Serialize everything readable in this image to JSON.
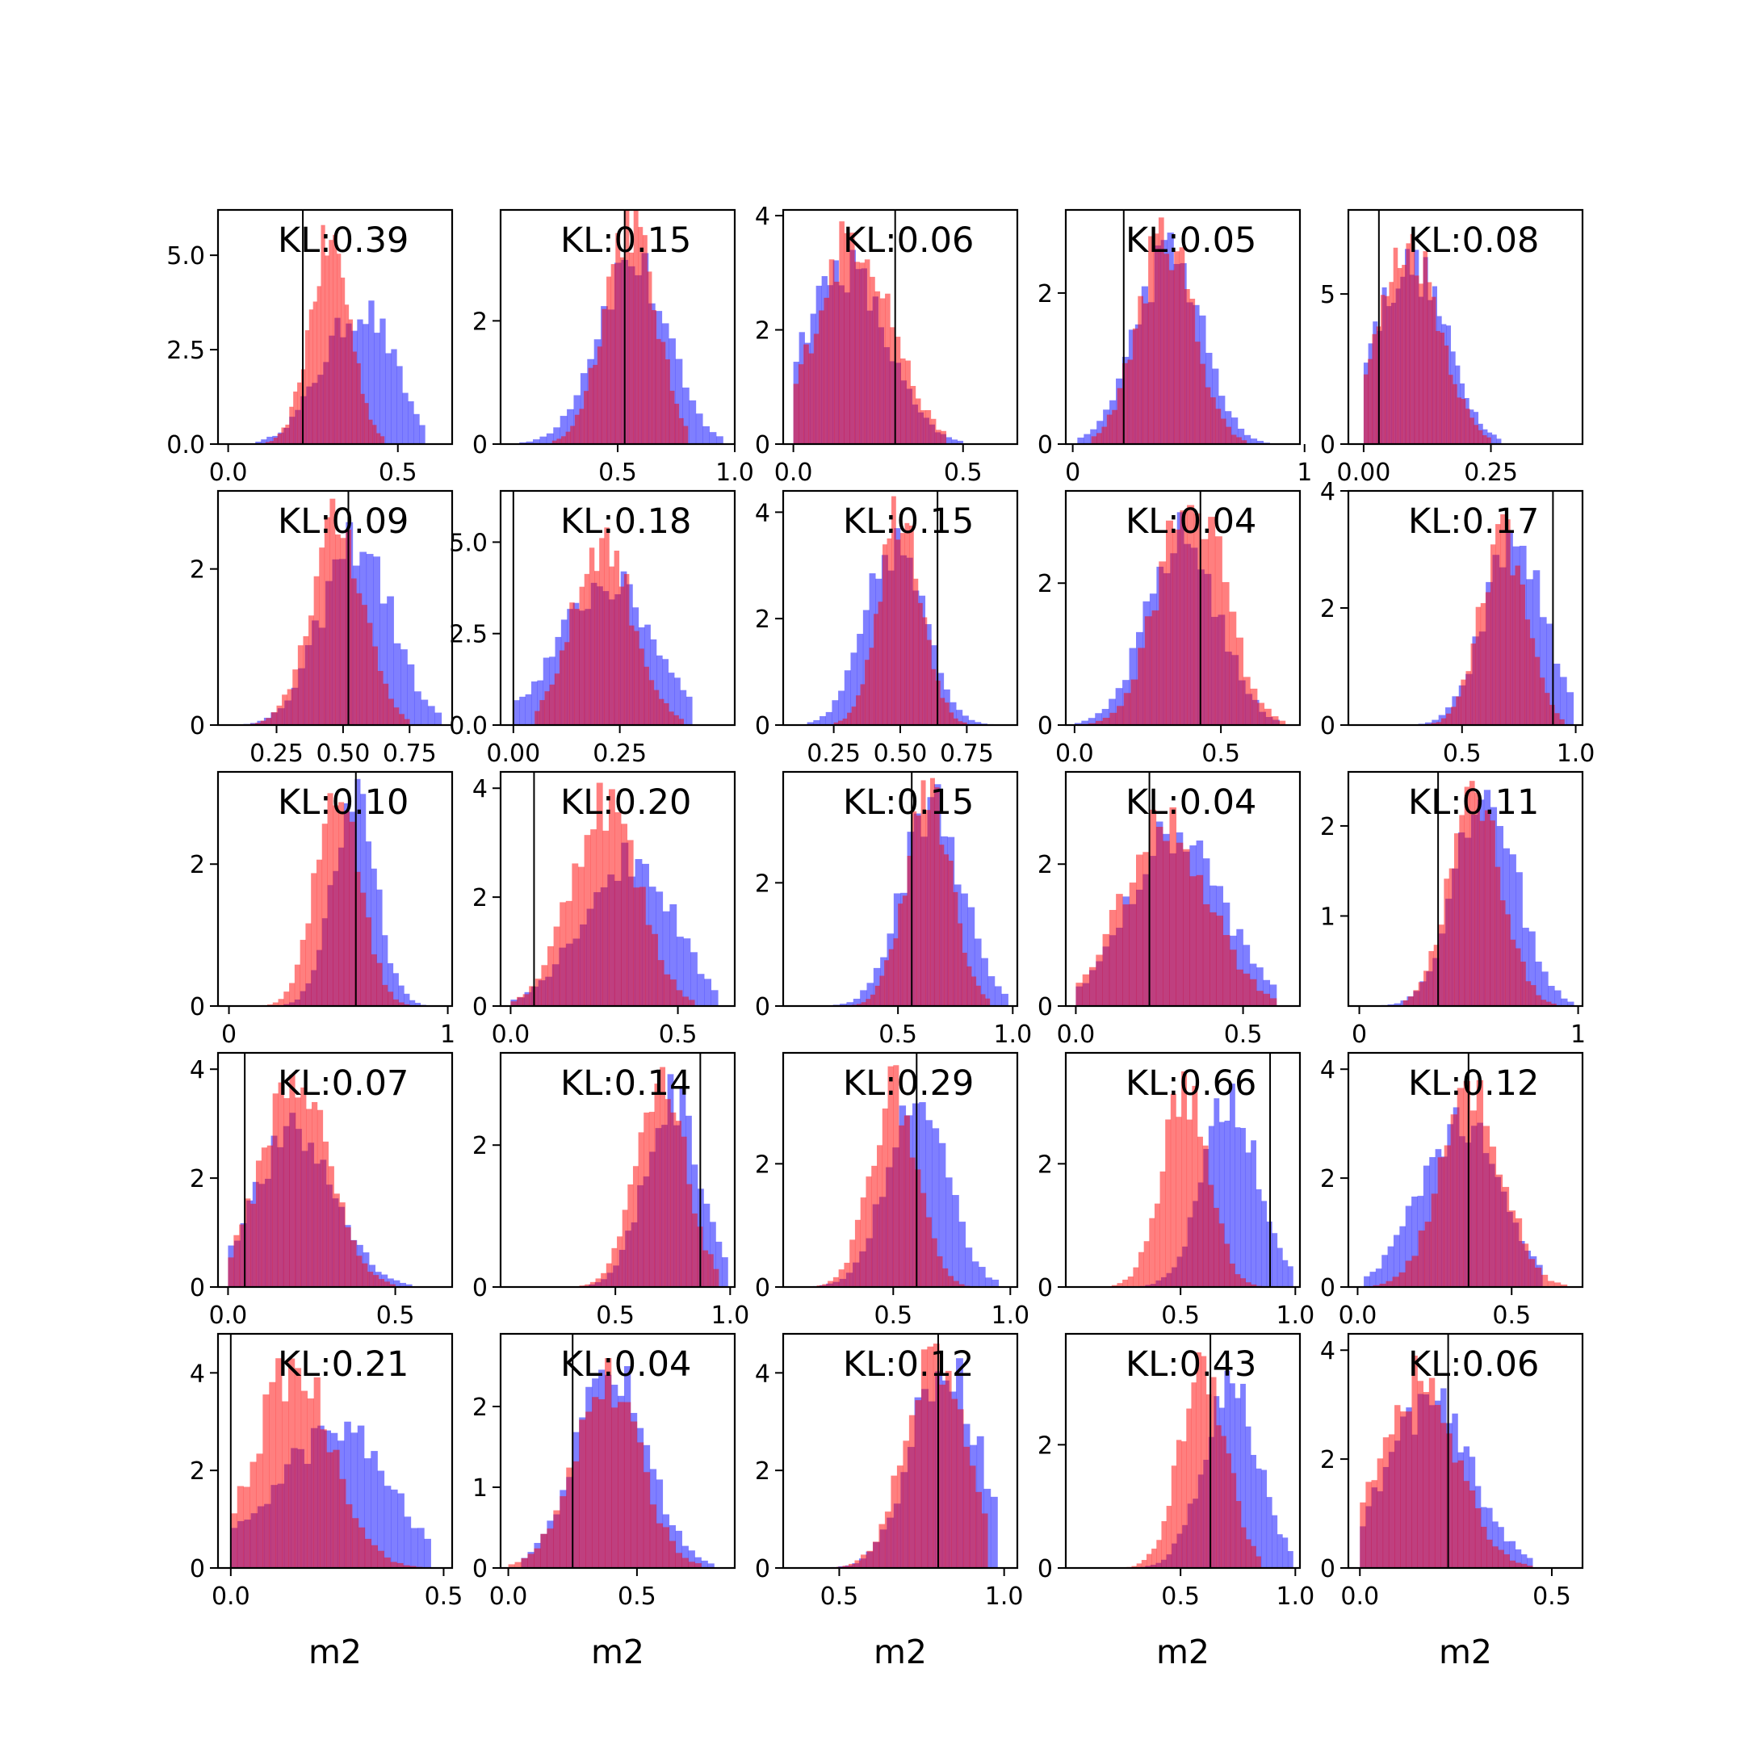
{
  "chart_data": {
    "type": "histogram-grid",
    "rows": 5,
    "cols": 5,
    "xlabel": "m2",
    "series": [
      {
        "color": "#0000ff",
        "alpha": 0.5
      },
      {
        "color": "#ff0000",
        "alpha": 0.5
      }
    ],
    "panels": [
      {
        "kl": "KL:0.39",
        "xlim": [
          -0.03,
          0.66
        ],
        "ylim": [
          0,
          6.2
        ],
        "xticks": [
          0.0,
          0.5
        ],
        "xtick_labels": [
          "0.0",
          "0.5"
        ],
        "yticks": [
          0,
          2.5,
          5.0
        ],
        "ytick_labels": [
          "0.0",
          "2.5",
          "5.0"
        ],
        "vline": 0.22,
        "blue": {
          "lo": 0.08,
          "hi": 0.58,
          "mean": 0.36,
          "sd": 0.1,
          "peak": 3.8,
          "skew": 0.5
        },
        "red": {
          "lo": 0.11,
          "hi": 0.46,
          "mean": 0.3,
          "sd": 0.06,
          "peak": 5.8,
          "skew": 0
        }
      },
      {
        "kl": "KL:0.15",
        "xlim": [
          0.0,
          1.0
        ],
        "ylim": [
          0,
          3.8
        ],
        "xticks": [
          0.5,
          1.0
        ],
        "xtick_labels": [
          "0.5",
          "1.0"
        ],
        "yticks": [
          0,
          2
        ],
        "ytick_labels": [
          "0",
          "2"
        ],
        "vline": 0.53,
        "blue": {
          "lo": 0.08,
          "hi": 0.95,
          "mean": 0.56,
          "sd": 0.15,
          "peak": 3.1,
          "skew": 0
        },
        "red": {
          "lo": 0.22,
          "hi": 0.8,
          "mean": 0.55,
          "sd": 0.11,
          "peak": 3.8,
          "skew": 0
        }
      },
      {
        "kl": "KL:0.06",
        "xlim": [
          -0.03,
          0.66
        ],
        "ylim": [
          0,
          4.1
        ],
        "xticks": [
          0.0,
          0.5
        ],
        "xtick_labels": [
          "0.0",
          "0.5"
        ],
        "yticks": [
          0,
          2,
          4
        ],
        "ytick_labels": [
          "0",
          "2",
          "4"
        ],
        "vline": 0.3,
        "blue": {
          "lo": 0.0,
          "hi": 0.5,
          "mean": 0.15,
          "sd": 0.12,
          "peak": 3.4,
          "skew": 0
        },
        "red": {
          "lo": 0.0,
          "hi": 0.45,
          "mean": 0.18,
          "sd": 0.11,
          "peak": 3.9,
          "skew": 0
        }
      },
      {
        "kl": "KL:0.05",
        "xlim": [
          -0.03,
          0.98
        ],
        "ylim": [
          0,
          3.1
        ],
        "xticks": [
          0,
          1
        ],
        "xtick_labels": [
          "0",
          "1"
        ],
        "yticks": [
          0,
          2
        ],
        "ytick_labels": [
          "0",
          "2"
        ],
        "vline": 0.22,
        "blue": {
          "lo": 0.02,
          "hi": 0.85,
          "mean": 0.4,
          "sd": 0.14,
          "peak": 2.8,
          "skew": 0.2
        },
        "red": {
          "lo": 0.08,
          "hi": 0.75,
          "mean": 0.4,
          "sd": 0.12,
          "peak": 3.0,
          "skew": 0
        }
      },
      {
        "kl": "KL:0.08",
        "xlim": [
          -0.03,
          0.43
        ],
        "ylim": [
          0,
          7.8
        ],
        "xticks": [
          0.0,
          0.25
        ],
        "xtick_labels": [
          "0.00",
          "0.25"
        ],
        "yticks": [
          0,
          5
        ],
        "ytick_labels": [
          "0",
          "5"
        ],
        "vline": 0.03,
        "blue": {
          "lo": 0.0,
          "hi": 0.27,
          "mean": 0.08,
          "sd": 0.07,
          "peak": 6.5,
          "skew": 0.3
        },
        "red": {
          "lo": 0.0,
          "hi": 0.25,
          "mean": 0.09,
          "sd": 0.06,
          "peak": 7.0,
          "skew": 0
        }
      },
      {
        "kl": "KL:0.09",
        "xlim": [
          0.03,
          0.91
        ],
        "ylim": [
          0,
          3.0
        ],
        "xticks": [
          0.25,
          0.5,
          0.75
        ],
        "xtick_labels": [
          "0.25",
          "0.50",
          "0.75"
        ],
        "yticks": [
          0,
          2
        ],
        "ytick_labels": [
          "0",
          "2"
        ],
        "vline": 0.52,
        "blue": {
          "lo": 0.1,
          "hi": 0.87,
          "mean": 0.55,
          "sd": 0.13,
          "peak": 2.6,
          "skew": 0
        },
        "red": {
          "lo": 0.15,
          "hi": 0.75,
          "mean": 0.48,
          "sd": 0.1,
          "peak": 2.9,
          "skew": 0
        }
      },
      {
        "kl": "KL:0.18",
        "xlim": [
          -0.03,
          0.52
        ],
        "ylim": [
          0,
          6.4
        ],
        "xticks": [
          0.0,
          0.25
        ],
        "xtick_labels": [
          "0.00",
          "0.25"
        ],
        "yticks": [
          0,
          2.5,
          5.0
        ],
        "ytick_labels": [
          "0.0",
          "2.5",
          "5.0"
        ],
        "vline": 0.0,
        "blue": {
          "lo": 0.0,
          "hi": 0.42,
          "mean": 0.22,
          "sd": 0.11,
          "peak": 4.2,
          "skew": 0
        },
        "red": {
          "lo": 0.05,
          "hi": 0.4,
          "mean": 0.21,
          "sd": 0.07,
          "peak": 5.4,
          "skew": 0
        }
      },
      {
        "kl": "KL:0.15",
        "xlim": [
          0.06,
          0.94
        ],
        "ylim": [
          0,
          4.4
        ],
        "xticks": [
          0.25,
          0.5,
          0.75
        ],
        "xtick_labels": [
          "0.25",
          "0.50",
          "0.75"
        ],
        "yticks": [
          0,
          2,
          4
        ],
        "ytick_labels": [
          "0",
          "2",
          "4"
        ],
        "vline": 0.64,
        "blue": {
          "lo": 0.15,
          "hi": 0.85,
          "mean": 0.48,
          "sd": 0.11,
          "peak": 3.7,
          "skew": 0
        },
        "red": {
          "lo": 0.25,
          "hi": 0.75,
          "mean": 0.5,
          "sd": 0.08,
          "peak": 4.3,
          "skew": 0
        }
      },
      {
        "kl": "KL:0.04",
        "xlim": [
          -0.03,
          0.77
        ],
        "ylim": [
          0,
          3.3
        ],
        "xticks": [
          0.0,
          0.5
        ],
        "xtick_labels": [
          "0.0",
          "0.5"
        ],
        "yticks": [
          0,
          2
        ],
        "ytick_labels": [
          "0",
          "2"
        ],
        "vline": 0.43,
        "blue": {
          "lo": 0.0,
          "hi": 0.7,
          "mean": 0.37,
          "sd": 0.12,
          "peak": 3.0,
          "skew": 0
        },
        "red": {
          "lo": 0.0,
          "hi": 0.72,
          "mean": 0.4,
          "sd": 0.11,
          "peak": 3.1,
          "skew": 0
        }
      },
      {
        "kl": "KL:0.17",
        "xlim": [
          0.0,
          1.03
        ],
        "ylim": [
          0,
          4.0
        ],
        "xticks": [
          0.5,
          1.0
        ],
        "xtick_labels": [
          "0.5",
          "1.0"
        ],
        "yticks": [
          0,
          2,
          4
        ],
        "ytick_labels": [
          "0",
          "2",
          "4"
        ],
        "vline": 0.9,
        "blue": {
          "lo": 0.1,
          "hi": 0.99,
          "mean": 0.73,
          "sd": 0.13,
          "peak": 3.3,
          "skew": 0
        },
        "red": {
          "lo": 0.3,
          "hi": 0.95,
          "mean": 0.68,
          "sd": 0.1,
          "peak": 3.6,
          "skew": 0
        }
      },
      {
        "kl": "KL:0.10",
        "xlim": [
          -0.05,
          1.02
        ],
        "ylim": [
          0,
          3.3
        ],
        "xticks": [
          0,
          1
        ],
        "xtick_labels": [
          "0",
          "1"
        ],
        "yticks": [
          0,
          2
        ],
        "ytick_labels": [
          "0",
          "2"
        ],
        "vline": 0.58,
        "blue": {
          "lo": 0.2,
          "hi": 0.95,
          "mean": 0.57,
          "sd": 0.1,
          "peak": 3.2,
          "skew": 0
        },
        "red": {
          "lo": 0.1,
          "hi": 0.85,
          "mean": 0.5,
          "sd": 0.1,
          "peak": 3.0,
          "skew": 0
        }
      },
      {
        "kl": "KL:0.20",
        "xlim": [
          -0.03,
          0.67
        ],
        "ylim": [
          0,
          4.3
        ],
        "xticks": [
          0.0,
          0.5
        ],
        "xtick_labels": [
          "0.0",
          "0.5"
        ],
        "yticks": [
          0,
          2,
          4
        ],
        "ytick_labels": [
          "0",
          "2",
          "4"
        ],
        "vline": 0.07,
        "blue": {
          "lo": 0.0,
          "hi": 0.62,
          "mean": 0.32,
          "sd": 0.13,
          "peak": 3.0,
          "skew": 0.5
        },
        "red": {
          "lo": 0.0,
          "hi": 0.55,
          "mean": 0.28,
          "sd": 0.1,
          "peak": 4.1,
          "skew": 0
        }
      },
      {
        "kl": "KL:0.15",
        "xlim": [
          0.0,
          1.02
        ],
        "ylim": [
          0,
          3.8
        ],
        "xticks": [
          0.5,
          1.0
        ],
        "xtick_labels": [
          "0.5",
          "1.0"
        ],
        "yticks": [
          0,
          2
        ],
        "ytick_labels": [
          "0",
          "2"
        ],
        "vline": 0.56,
        "blue": {
          "lo": 0.1,
          "hi": 0.98,
          "mean": 0.65,
          "sd": 0.13,
          "peak": 3.6,
          "skew": 0
        },
        "red": {
          "lo": 0.3,
          "hi": 0.9,
          "mean": 0.63,
          "sd": 0.1,
          "peak": 3.7,
          "skew": 0
        }
      },
      {
        "kl": "KL:0.04",
        "xlim": [
          -0.03,
          0.67
        ],
        "ylim": [
          0,
          3.3
        ],
        "xticks": [
          0.0,
          0.5
        ],
        "xtick_labels": [
          "0.0",
          "0.5"
        ],
        "yticks": [
          0,
          2
        ],
        "ytick_labels": [
          "0",
          "2"
        ],
        "vline": 0.22,
        "blue": {
          "lo": 0.0,
          "hi": 0.6,
          "mean": 0.3,
          "sd": 0.14,
          "peak": 2.6,
          "skew": 0
        },
        "red": {
          "lo": 0.0,
          "hi": 0.6,
          "mean": 0.27,
          "sd": 0.13,
          "peak": 2.8,
          "skew": 0
        }
      },
      {
        "kl": "KL:0.11",
        "xlim": [
          -0.05,
          1.02
        ],
        "ylim": [
          0,
          2.6
        ],
        "xticks": [
          0,
          1
        ],
        "xtick_labels": [
          "0",
          "1"
        ],
        "yticks": [
          1,
          2
        ],
        "ytick_labels": [
          "1",
          "2"
        ],
        "vline": 0.36,
        "blue": {
          "lo": 0.1,
          "hi": 0.98,
          "mean": 0.58,
          "sd": 0.14,
          "peak": 2.4,
          "skew": 0
        },
        "red": {
          "lo": 0.2,
          "hi": 0.9,
          "mean": 0.53,
          "sd": 0.12,
          "peak": 2.5,
          "skew": 0
        }
      },
      {
        "kl": "KL:0.07",
        "xlim": [
          -0.03,
          0.67
        ],
        "ylim": [
          0,
          4.3
        ],
        "xticks": [
          0.0,
          0.5
        ],
        "xtick_labels": [
          "0.0",
          "0.5"
        ],
        "yticks": [
          0,
          2,
          4
        ],
        "ytick_labels": [
          "0",
          "2",
          "4"
        ],
        "vline": 0.05,
        "blue": {
          "lo": 0.0,
          "hi": 0.55,
          "mean": 0.2,
          "sd": 0.12,
          "peak": 3.2,
          "skew": 0
        },
        "red": {
          "lo": 0.0,
          "hi": 0.5,
          "mean": 0.2,
          "sd": 0.1,
          "peak": 3.9,
          "skew": 0
        }
      },
      {
        "kl": "KL:0.14",
        "xlim": [
          0.0,
          1.02
        ],
        "ylim": [
          0,
          3.3
        ],
        "xticks": [
          0.5,
          1.0
        ],
        "xtick_labels": [
          "0.5",
          "1.0"
        ],
        "yticks": [
          0,
          2
        ],
        "ytick_labels": [
          "0",
          "2"
        ],
        "vline": 0.87,
        "blue": {
          "lo": 0.2,
          "hi": 0.99,
          "mean": 0.75,
          "sd": 0.12,
          "peak": 3.0,
          "skew": 0
        },
        "red": {
          "lo": 0.25,
          "hi": 0.95,
          "mean": 0.7,
          "sd": 0.11,
          "peak": 3.1,
          "skew": 0
        }
      },
      {
        "kl": "KL:0.29",
        "xlim": [
          0.03,
          1.03
        ],
        "ylim": [
          0,
          3.8
        ],
        "xticks": [
          0.5,
          1.0
        ],
        "xtick_labels": [
          "0.5",
          "1.0"
        ],
        "yticks": [
          0,
          2
        ],
        "ytick_labels": [
          "0",
          "2"
        ],
        "vline": 0.6,
        "blue": {
          "lo": 0.1,
          "hi": 0.95,
          "mean": 0.6,
          "sd": 0.13,
          "peak": 3.0,
          "skew": 0
        },
        "red": {
          "lo": 0.15,
          "hi": 0.85,
          "mean": 0.5,
          "sd": 0.1,
          "peak": 3.6,
          "skew": 0
        }
      },
      {
        "kl": "KL:0.66",
        "xlim": [
          0.0,
          1.02
        ],
        "ylim": [
          0,
          3.8
        ],
        "xticks": [
          0.5,
          1.0
        ],
        "xtick_labels": [
          "0.5",
          "1.0"
        ],
        "yticks": [
          0,
          2
        ],
        "ytick_labels": [
          "0",
          "2"
        ],
        "vline": 0.89,
        "blue": {
          "lo": 0.3,
          "hi": 0.99,
          "mean": 0.72,
          "sd": 0.12,
          "peak": 3.3,
          "skew": 0
        },
        "red": {
          "lo": 0.2,
          "hi": 0.9,
          "mean": 0.52,
          "sd": 0.1,
          "peak": 3.5,
          "skew": 0
        }
      },
      {
        "kl": "KL:0.12",
        "xlim": [
          -0.03,
          0.73
        ],
        "ylim": [
          0,
          4.3
        ],
        "xticks": [
          0.0,
          0.5
        ],
        "xtick_labels": [
          "0.0",
          "0.5"
        ],
        "yticks": [
          0,
          2,
          4
        ],
        "ytick_labels": [
          "0",
          "2",
          "4"
        ],
        "vline": 0.36,
        "blue": {
          "lo": 0.02,
          "hi": 0.6,
          "mean": 0.33,
          "sd": 0.13,
          "peak": 3.3,
          "skew": 0
        },
        "red": {
          "lo": 0.05,
          "hi": 0.68,
          "mean": 0.37,
          "sd": 0.1,
          "peak": 3.8,
          "skew": 0
        }
      },
      {
        "kl": "KL:0.21",
        "xlim": [
          -0.03,
          0.52
        ],
        "ylim": [
          0,
          4.8
        ],
        "xticks": [
          0.0,
          0.5
        ],
        "xtick_labels": [
          "0.0",
          "0.5"
        ],
        "yticks": [
          0,
          2,
          4
        ],
        "ytick_labels": [
          "0",
          "2",
          "4"
        ],
        "vline": 0.0,
        "blue": {
          "lo": 0.0,
          "hi": 0.47,
          "mean": 0.2,
          "sd": 0.13,
          "peak": 3.0,
          "skew": 0.6
        },
        "red": {
          "lo": 0.0,
          "hi": 0.45,
          "mean": 0.15,
          "sd": 0.09,
          "peak": 4.3,
          "skew": 0
        }
      },
      {
        "kl": "KL:0.04",
        "xlim": [
          -0.03,
          0.88
        ],
        "ylim": [
          0,
          2.9
        ],
        "xticks": [
          0.0,
          0.5
        ],
        "xtick_labels": [
          "0.0",
          "0.5"
        ],
        "yticks": [
          0,
          1,
          2
        ],
        "ytick_labels": [
          "0",
          "1",
          "2"
        ],
        "vline": 0.25,
        "blue": {
          "lo": 0.05,
          "hi": 0.8,
          "mean": 0.4,
          "sd": 0.14,
          "peak": 2.5,
          "skew": 0
        },
        "red": {
          "lo": 0.0,
          "hi": 0.75,
          "mean": 0.38,
          "sd": 0.13,
          "peak": 2.6,
          "skew": 0
        }
      },
      {
        "kl": "KL:0.12",
        "xlim": [
          0.33,
          1.04
        ],
        "ylim": [
          0,
          4.8
        ],
        "xticks": [
          0.5,
          1.0
        ],
        "xtick_labels": [
          "0.5",
          "1.0"
        ],
        "yticks": [
          0,
          2,
          4
        ],
        "ytick_labels": [
          "0",
          "2",
          "4"
        ],
        "vline": 0.8,
        "blue": {
          "lo": 0.35,
          "hi": 0.98,
          "mean": 0.82,
          "sd": 0.1,
          "peak": 4.3,
          "skew": 0
        },
        "red": {
          "lo": 0.4,
          "hi": 0.95,
          "mean": 0.79,
          "sd": 0.09,
          "peak": 4.6,
          "skew": 0
        }
      },
      {
        "kl": "KL:0.43",
        "xlim": [
          0.0,
          1.02
        ],
        "ylim": [
          0,
          3.8
        ],
        "xticks": [
          0.5,
          1.0
        ],
        "xtick_labels": [
          "0.5",
          "1.0"
        ],
        "yticks": [
          0,
          2
        ],
        "ytick_labels": [
          "0",
          "2"
        ],
        "vline": 0.63,
        "blue": {
          "lo": 0.3,
          "hi": 0.99,
          "mean": 0.72,
          "sd": 0.12,
          "peak": 3.2,
          "skew": 0
        },
        "red": {
          "lo": 0.2,
          "hi": 0.85,
          "mean": 0.6,
          "sd": 0.1,
          "peak": 3.5,
          "skew": 0
        }
      },
      {
        "kl": "KL:0.06",
        "xlim": [
          -0.03,
          0.58
        ],
        "ylim": [
          0,
          4.3
        ],
        "xticks": [
          0.0,
          0.5
        ],
        "xtick_labels": [
          "0.0",
          "0.5"
        ],
        "yticks": [
          0,
          2,
          4
        ],
        "ytick_labels": [
          "0",
          "2",
          "4"
        ],
        "vline": 0.23,
        "blue": {
          "lo": 0.0,
          "hi": 0.45,
          "mean": 0.18,
          "sd": 0.11,
          "peak": 3.3,
          "skew": 0
        },
        "red": {
          "lo": 0.0,
          "hi": 0.45,
          "mean": 0.15,
          "sd": 0.1,
          "peak": 3.9,
          "skew": 0
        }
      }
    ]
  }
}
